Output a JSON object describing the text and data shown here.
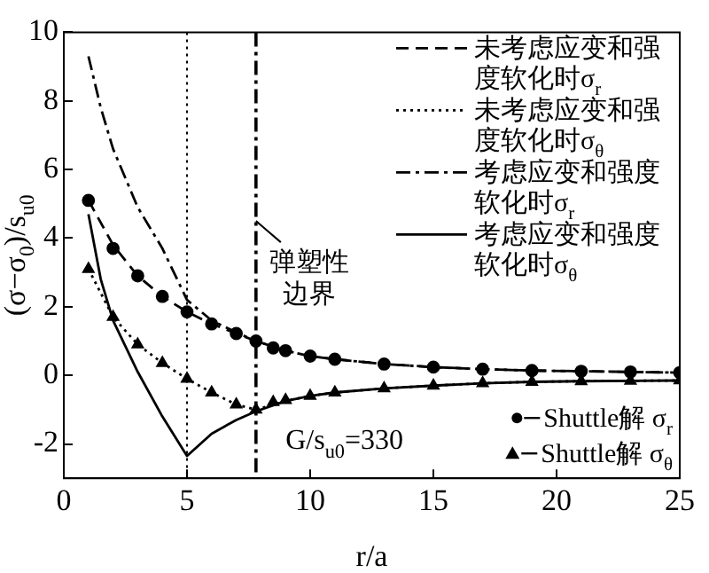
{
  "chart_data": {
    "type": "line",
    "xlabel": "r/a",
    "ylabel": "(σ−σ$_{0}$)/s$_{u0}$",
    "xlim": [
      0,
      25
    ],
    "xticks": [
      0,
      5,
      10,
      15,
      20,
      25
    ],
    "ylim": [
      -3,
      10
    ],
    "yticks": [
      -2,
      0,
      2,
      4,
      6,
      8,
      10
    ],
    "grid": false,
    "legend": "right",
    "annotations": [
      "G/s$_{u0}$=330"
    ],
    "ref_lines": [
      {
        "axis": "x",
        "value": 5,
        "color": "#000000",
        "line_style": "dotted"
      },
      {
        "axis": "x",
        "value": 7.8,
        "label": "弹塑性边界",
        "color": "#000000",
        "line_style": "dashdot"
      }
    ],
    "series": [
      {
        "name": "未考虑应变和强度软化时σ$_{r}$",
        "type": "line",
        "color": "#000000",
        "line_style": "dashed",
        "x": [
          1,
          2,
          3,
          4,
          5,
          6,
          7,
          7.8,
          9,
          10,
          11,
          13,
          15,
          17,
          19,
          21,
          23,
          25
        ],
        "values": [
          5.1,
          3.8,
          2.9,
          2.3,
          1.85,
          1.5,
          1.22,
          1.0,
          0.72,
          0.56,
          0.47,
          0.33,
          0.24,
          0.18,
          0.14,
          0.12,
          0.1,
          0.08
        ]
      },
      {
        "name": "未考虑应变和强度软化时σ$_{θ}$",
        "type": "line",
        "color": "#000000",
        "line_style": "dotted",
        "x": [
          1,
          2,
          3,
          4,
          5,
          6,
          7,
          7.8,
          9,
          10,
          11,
          13,
          15,
          17,
          19,
          21,
          23,
          25
        ],
        "values": [
          3.1,
          1.7,
          0.9,
          0.36,
          -0.1,
          -0.5,
          -0.85,
          -1.0,
          -0.75,
          -0.6,
          -0.5,
          -0.38,
          -0.3,
          -0.23,
          -0.19,
          -0.17,
          -0.16,
          -0.15
        ]
      },
      {
        "name": "考虑应变和强度软化时σ$_{r}$",
        "type": "line",
        "color": "#000000",
        "line_style": "dashdot",
        "x": [
          1,
          1.5,
          2,
          3,
          4,
          5,
          6,
          7,
          7.8,
          9,
          10,
          11,
          13,
          15,
          17,
          19,
          21,
          23,
          25
        ],
        "values": [
          9.3,
          7.8,
          6.6,
          4.9,
          3.7,
          2.2,
          1.6,
          1.25,
          1.0,
          0.72,
          0.56,
          0.47,
          0.33,
          0.24,
          0.18,
          0.14,
          0.12,
          0.1,
          0.08
        ]
      },
      {
        "name": "考虑应变和强度软化时σ$_{θ}$",
        "type": "line",
        "color": "#000000",
        "line_style": "solid",
        "x": [
          1,
          1.5,
          2,
          3,
          4,
          5,
          6,
          7,
          7.8,
          9,
          10,
          11,
          13,
          15,
          17,
          19,
          21,
          23,
          25
        ],
        "values": [
          4.7,
          2.8,
          1.6,
          0.1,
          -1.2,
          -2.35,
          -1.7,
          -1.3,
          -1.05,
          -0.75,
          -0.6,
          -0.5,
          -0.38,
          -0.3,
          -0.23,
          -0.19,
          -0.17,
          -0.16,
          -0.15
        ]
      },
      {
        "name": "Shuttle解 σ$_{r}$",
        "type": "scatter",
        "color": "#000000",
        "marker": "circle",
        "x": [
          1,
          2,
          3,
          4,
          5,
          6,
          7,
          7.8,
          8.5,
          9,
          10,
          11,
          13,
          15,
          17,
          19,
          21,
          23,
          25
        ],
        "values": [
          5.1,
          3.7,
          2.9,
          2.3,
          1.85,
          1.5,
          1.22,
          1.0,
          0.8,
          0.72,
          0.56,
          0.47,
          0.33,
          0.24,
          0.18,
          0.14,
          0.12,
          0.1,
          0.08
        ]
      },
      {
        "name": "Shuttle解 σ$_{θ}$",
        "type": "scatter",
        "color": "#000000",
        "marker": "triangle",
        "x": [
          1,
          2,
          3,
          4,
          5,
          6,
          7,
          7.8,
          8.5,
          9,
          10,
          11,
          13,
          15,
          17,
          19,
          21,
          23,
          25
        ],
        "values": [
          3.1,
          1.7,
          0.9,
          0.36,
          -0.1,
          -0.5,
          -0.85,
          -1.0,
          -0.78,
          -0.72,
          -0.6,
          -0.5,
          -0.38,
          -0.3,
          -0.23,
          -0.19,
          -0.17,
          -0.16,
          -0.15
        ]
      }
    ]
  }
}
